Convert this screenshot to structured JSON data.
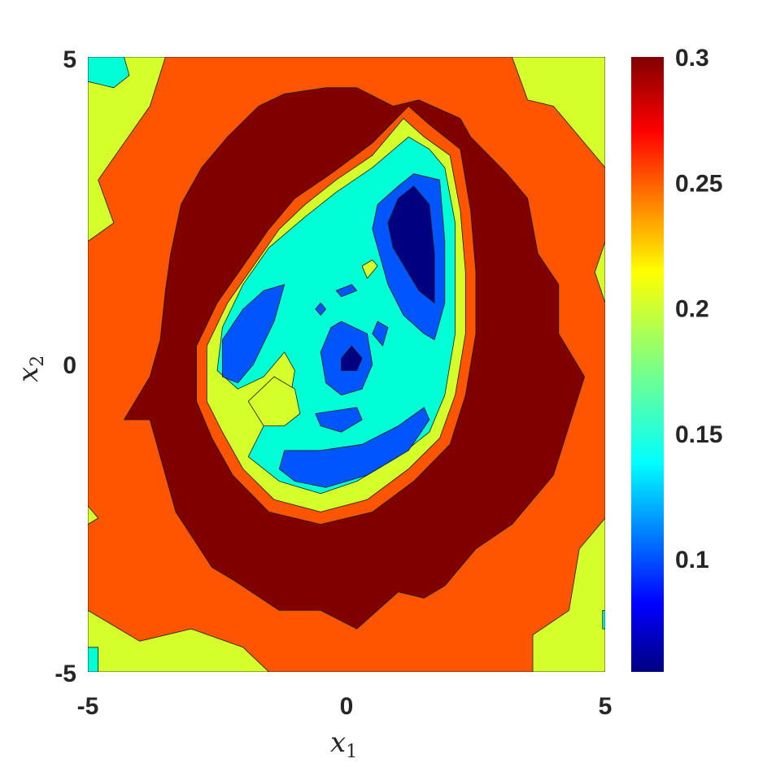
{
  "chart_data": {
    "type": "heatmap",
    "subtype": "filled-contour",
    "title": "",
    "xlabel": "x",
    "xlabel_subscript": "1",
    "ylabel": "x",
    "ylabel_subscript": "2",
    "xlim": [
      -5,
      5
    ],
    "ylim": [
      -5,
      5
    ],
    "x_ticks": [
      "-5",
      "0",
      "5"
    ],
    "y_ticks": [
      "-5",
      "0",
      "5"
    ],
    "colorbar": {
      "colormap": "jet",
      "range": [
        0.055,
        0.3
      ],
      "ticks": [
        "0.1",
        "0.15",
        "0.2",
        "0.25",
        "0.3"
      ],
      "tick_values": [
        0.1,
        0.15,
        0.2,
        0.25,
        0.3
      ]
    },
    "levels": [
      {
        "value": 0.2,
        "color": "#d4ff2a"
      },
      {
        "value": 0.25,
        "color": "#ff5500"
      },
      {
        "value": 0.29,
        "color": "#800000"
      },
      {
        "value": 0.25,
        "color": "#ff5500"
      },
      {
        "value": 0.2,
        "color": "#d4ff2a"
      },
      {
        "value": 0.15,
        "color": "#00ffd5"
      },
      {
        "value": 0.1,
        "color": "#0055ff"
      },
      {
        "value": 0.06,
        "color": "#000080"
      }
    ],
    "regions": [
      {
        "name": "outer-band",
        "level": 0.2,
        "points": [
          [
            -5,
            5
          ],
          [
            5,
            5
          ],
          [
            5,
            -5
          ],
          [
            -5,
            -5
          ]
        ]
      },
      {
        "name": "orange-ring",
        "level": 0.25,
        "points": [
          [
            -3.5,
            5
          ],
          [
            3.2,
            5
          ],
          [
            3.5,
            4.3
          ],
          [
            4,
            4.2
          ],
          [
            5,
            3.2
          ],
          [
            5,
            2
          ],
          [
            4.8,
            1.5
          ],
          [
            5,
            1
          ],
          [
            5,
            -2.5
          ],
          [
            4.5,
            -3
          ],
          [
            4.3,
            -4
          ],
          [
            3.6,
            -4.4
          ],
          [
            3.6,
            -5
          ],
          [
            -1.5,
            -5
          ],
          [
            -2,
            -4.6
          ],
          [
            -3,
            -4.3
          ],
          [
            -4,
            -4.5
          ],
          [
            -5,
            -4
          ],
          [
            -5,
            -2.6
          ],
          [
            -4.8,
            -2.5
          ],
          [
            -5,
            -2.3
          ],
          [
            -5,
            2
          ],
          [
            -4.5,
            2.3
          ],
          [
            -4.8,
            3
          ],
          [
            -4.3,
            3.6
          ],
          [
            -3.8,
            4.2
          ],
          [
            -3.5,
            5
          ]
        ]
      },
      {
        "name": "dark-red-ring",
        "level": 0.29,
        "points": [
          [
            -1.7,
            4.2
          ],
          [
            -1.2,
            4.4
          ],
          [
            -0.4,
            4.5
          ],
          [
            0.2,
            4.5
          ],
          [
            0.9,
            4.2
          ],
          [
            1.4,
            4.3
          ],
          [
            2.2,
            4.0
          ],
          [
            2.4,
            3.7
          ],
          [
            3.1,
            3.1
          ],
          [
            3.5,
            2.7
          ],
          [
            3.7,
            1.8
          ],
          [
            4.1,
            1.3
          ],
          [
            4.1,
            0.5
          ],
          [
            4.6,
            -0.2
          ],
          [
            4.3,
            -1.0
          ],
          [
            4.0,
            -1.8
          ],
          [
            3.2,
            -2.6
          ],
          [
            2.5,
            -3.0
          ],
          [
            1.9,
            -3.6
          ],
          [
            1.5,
            -3.8
          ],
          [
            1.0,
            -3.7
          ],
          [
            0.2,
            -4.3
          ],
          [
            -0.5,
            -4.0
          ],
          [
            -1.3,
            -4.0
          ],
          [
            -2.2,
            -3.5
          ],
          [
            -2.6,
            -3.3
          ],
          [
            -3.3,
            -2.4
          ],
          [
            -3.8,
            -0.9
          ],
          [
            -4.3,
            -0.9
          ],
          [
            -3.8,
            -0.2
          ],
          [
            -3.6,
            0.4
          ],
          [
            -3.5,
            1.2
          ],
          [
            -3.4,
            1.8
          ],
          [
            -3.2,
            2.6
          ],
          [
            -2.8,
            3.2
          ],
          [
            -2.3,
            3.7
          ],
          [
            -1.7,
            4.2
          ]
        ]
      },
      {
        "name": "inner-orange",
        "level": 0.25,
        "points": [
          [
            1.2,
            4.2
          ],
          [
            1.6,
            3.9
          ],
          [
            2.2,
            3.5
          ],
          [
            2.4,
            2.5
          ],
          [
            2.5,
            1.5
          ],
          [
            2.5,
            0.5
          ],
          [
            2.3,
            -0.5
          ],
          [
            2.0,
            -1.3
          ],
          [
            1.3,
            -1.9
          ],
          [
            0.5,
            -2.4
          ],
          [
            -0.5,
            -2.6
          ],
          [
            -1.5,
            -2.4
          ],
          [
            -2.2,
            -1.8
          ],
          [
            -2.6,
            -1.2
          ],
          [
            -2.9,
            -0.6
          ],
          [
            -2.9,
            0.3
          ],
          [
            -2.5,
            1.0
          ],
          [
            -2.0,
            1.6
          ],
          [
            -1.5,
            2.2
          ],
          [
            -1.0,
            2.7
          ],
          [
            -0.3,
            3.1
          ],
          [
            0.5,
            3.6
          ],
          [
            1.2,
            4.2
          ]
        ]
      },
      {
        "name": "inner-yellow",
        "level": 0.2,
        "points": [
          [
            1.1,
            4.0
          ],
          [
            1.5,
            3.7
          ],
          [
            2.0,
            3.4
          ],
          [
            2.2,
            2.5
          ],
          [
            2.3,
            1.5
          ],
          [
            2.3,
            0.5
          ],
          [
            2.1,
            -0.5
          ],
          [
            1.8,
            -1.2
          ],
          [
            1.2,
            -1.7
          ],
          [
            0.4,
            -2.2
          ],
          [
            -0.5,
            -2.4
          ],
          [
            -1.4,
            -2.2
          ],
          [
            -2.0,
            -1.7
          ],
          [
            -2.4,
            -1.1
          ],
          [
            -2.7,
            -0.6
          ],
          [
            -2.7,
            0.3
          ],
          [
            -2.3,
            1.0
          ],
          [
            -1.8,
            1.6
          ],
          [
            -1.3,
            2.2
          ],
          [
            -0.8,
            2.6
          ],
          [
            -0.2,
            3.0
          ],
          [
            0.5,
            3.4
          ],
          [
            1.1,
            4.0
          ]
        ]
      },
      {
        "name": "cyan-core",
        "level": 0.15,
        "points": [
          [
            1.2,
            3.7
          ],
          [
            1.6,
            3.5
          ],
          [
            1.9,
            3.2
          ],
          [
            2.1,
            2.3
          ],
          [
            2.1,
            1.5
          ],
          [
            2.1,
            0.5
          ],
          [
            1.9,
            -0.5
          ],
          [
            1.6,
            -1.1
          ],
          [
            1.0,
            -1.5
          ],
          [
            0.2,
            -1.9
          ],
          [
            -0.5,
            -2.1
          ],
          [
            -1.3,
            -1.9
          ],
          [
            -1.9,
            -1.5
          ],
          [
            -1.6,
            -1.0
          ],
          [
            -1.1,
            -0.6
          ],
          [
            -1.0,
            -0.1
          ],
          [
            -1.2,
            0.2
          ],
          [
            -1.6,
            -0.2
          ],
          [
            -2.1,
            -0.4
          ],
          [
            -2.5,
            -0.1
          ],
          [
            -2.4,
            0.6
          ],
          [
            -2.0,
            1.3
          ],
          [
            -1.5,
            1.9
          ],
          [
            -0.8,
            2.4
          ],
          [
            -0.2,
            2.8
          ],
          [
            0.5,
            3.2
          ],
          [
            1.2,
            3.7
          ]
        ]
      },
      {
        "name": "yellow-notch",
        "level": 0.2,
        "points": [
          [
            -1.0,
            -0.4
          ],
          [
            -1.4,
            -0.2
          ],
          [
            -1.9,
            -0.6
          ],
          [
            -1.6,
            -1.0
          ],
          [
            -1.2,
            -1.0
          ],
          [
            -0.9,
            -0.8
          ]
        ]
      },
      {
        "name": "yellow-spot",
        "level": 0.2,
        "points": [
          [
            0.4,
            1.4
          ],
          [
            0.6,
            1.6
          ],
          [
            0.5,
            1.7
          ],
          [
            0.3,
            1.6
          ]
        ]
      },
      {
        "name": "blue-left-lobe",
        "level": 0.1,
        "points": [
          [
            -1.2,
            1.3
          ],
          [
            -1.4,
            0.7
          ],
          [
            -1.8,
            0.0
          ],
          [
            -2.1,
            -0.3
          ],
          [
            -2.4,
            -0.2
          ],
          [
            -2.4,
            0.4
          ],
          [
            -2.0,
            0.9
          ],
          [
            -1.6,
            1.2
          ]
        ]
      },
      {
        "name": "blue-upper-right",
        "level": 0.1,
        "points": [
          [
            1.3,
            3.1
          ],
          [
            1.8,
            3.0
          ],
          [
            1.9,
            2.0
          ],
          [
            1.9,
            1.0
          ],
          [
            1.7,
            0.4
          ],
          [
            1.5,
            0.5
          ],
          [
            1.1,
            0.8
          ],
          [
            0.8,
            1.3
          ],
          [
            0.5,
            2.2
          ],
          [
            0.6,
            2.6
          ],
          [
            1.0,
            2.9
          ]
        ]
      },
      {
        "name": "blue-lower-band",
        "level": 0.1,
        "points": [
          [
            -1.2,
            -1.4
          ],
          [
            -0.5,
            -1.4
          ],
          [
            0.3,
            -1.3
          ],
          [
            1.0,
            -1.0
          ],
          [
            1.5,
            -0.7
          ],
          [
            1.6,
            -0.9
          ],
          [
            1.2,
            -1.4
          ],
          [
            0.4,
            -1.8
          ],
          [
            -0.4,
            -2.0
          ],
          [
            -1.0,
            -1.9
          ],
          [
            -1.3,
            -1.7
          ]
        ]
      },
      {
        "name": "blue-center-ring",
        "level": 0.1,
        "points": [
          [
            -0.1,
            0.7
          ],
          [
            0.4,
            0.5
          ],
          [
            0.5,
            0.0
          ],
          [
            0.3,
            -0.4
          ],
          [
            -0.1,
            -0.5
          ],
          [
            -0.4,
            -0.3
          ],
          [
            -0.5,
            0.2
          ],
          [
            -0.3,
            0.6
          ]
        ]
      },
      {
        "name": "blue-small-lower",
        "level": 0.1,
        "points": [
          [
            -0.6,
            -0.8
          ],
          [
            0.2,
            -0.7
          ],
          [
            0.3,
            -0.9
          ],
          [
            -0.1,
            -1.1
          ],
          [
            -0.5,
            -1.0
          ]
        ]
      },
      {
        "name": "blue-small-upper",
        "level": 0.1,
        "points": [
          [
            -0.2,
            1.2
          ],
          [
            0.1,
            1.3
          ],
          [
            0.2,
            1.2
          ],
          [
            -0.1,
            1.1
          ]
        ]
      },
      {
        "name": "blue-small-left",
        "level": 0.1,
        "points": [
          [
            -0.6,
            0.9
          ],
          [
            -0.5,
            1.0
          ],
          [
            -0.4,
            0.9
          ],
          [
            -0.5,
            0.8
          ]
        ]
      },
      {
        "name": "blue-small-right",
        "level": 0.1,
        "points": [
          [
            0.6,
            0.7
          ],
          [
            0.8,
            0.6
          ],
          [
            0.7,
            0.3
          ],
          [
            0.5,
            0.5
          ]
        ]
      },
      {
        "name": "navy-upper-right",
        "level": 0.06,
        "points": [
          [
            1.3,
            2.9
          ],
          [
            1.6,
            2.6
          ],
          [
            1.7,
            1.8
          ],
          [
            1.7,
            1.0
          ],
          [
            1.4,
            1.2
          ],
          [
            0.9,
            1.9
          ],
          [
            0.8,
            2.3
          ],
          [
            1.0,
            2.7
          ]
        ]
      },
      {
        "name": "navy-center",
        "level": 0.06,
        "points": [
          [
            0.1,
            0.3
          ],
          [
            0.3,
            0.1
          ],
          [
            0.2,
            -0.1
          ],
          [
            -0.1,
            -0.1
          ],
          [
            -0.1,
            0.1
          ]
        ]
      },
      {
        "name": "cyan-corner-top-left",
        "level": 0.15,
        "points": [
          [
            -5,
            5
          ],
          [
            -4.3,
            5
          ],
          [
            -4.2,
            4.7
          ],
          [
            -4.5,
            4.5
          ],
          [
            -5,
            4.6
          ]
        ]
      },
      {
        "name": "cyan-corner-bottom-left",
        "level": 0.15,
        "points": [
          [
            -5,
            -4.6
          ],
          [
            -4.8,
            -4.6
          ],
          [
            -4.8,
            -5
          ],
          [
            -5,
            -5
          ]
        ]
      },
      {
        "name": "cyan-corner-bottom-right",
        "level": 0.15,
        "points": [
          [
            4.95,
            -4.0
          ],
          [
            5,
            -4.0
          ],
          [
            5,
            -4.3
          ],
          [
            4.95,
            -4.3
          ]
        ]
      }
    ]
  }
}
